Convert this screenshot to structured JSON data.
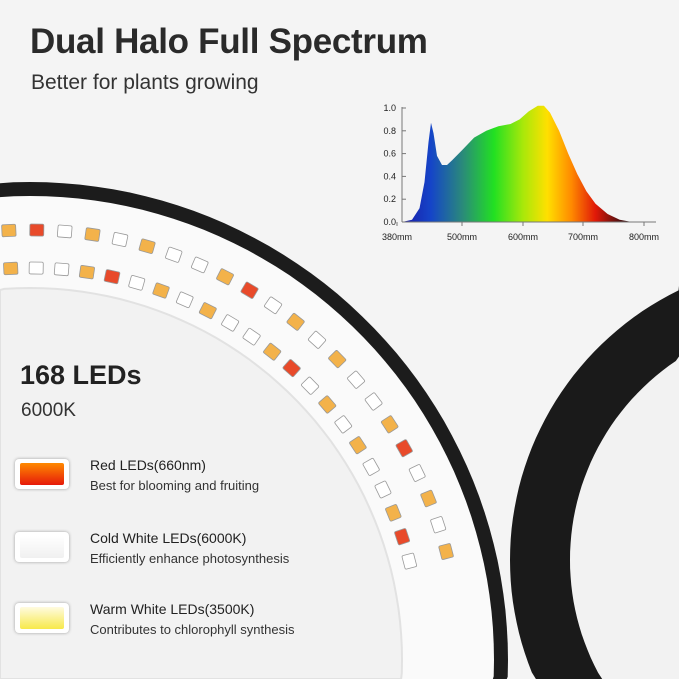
{
  "header": {
    "title": "Dual Halo Full Spectrum",
    "subtitle": "Better for plants growing"
  },
  "specs": {
    "led_count": "168 LEDs",
    "color_temperature": "6000K"
  },
  "legend": [
    {
      "title": "Red LEDs(660nm)",
      "description": "Best for blooming and fruiting",
      "color_top": "#ff8a00",
      "color_bottom": "#e61a0a"
    },
    {
      "title": "Cold White LEDs(6000K)",
      "description": "Efficiently enhance photosynthesis",
      "color_top": "#ffffff",
      "color_bottom": "#f2f2f2"
    },
    {
      "title": "Warm White LEDs(3500K)",
      "description": "Contributes to chlorophyll synthesis",
      "color_top": "#fffbe0",
      "color_bottom": "#f7e94a"
    }
  ],
  "chart_data": {
    "type": "area",
    "x_tick_labels": [
      "380mm",
      "500mm",
      "600mm",
      "700mm",
      "800mm"
    ],
    "x_ticks": [
      380,
      500,
      600,
      700,
      800
    ],
    "y_tick_labels": [
      "0.0",
      "0.2",
      "0.4",
      "0.6",
      "0.8",
      "1.0"
    ],
    "y_ticks": [
      0,
      0.2,
      0.4,
      0.6,
      0.8,
      1.0
    ],
    "xlim": [
      380,
      800
    ],
    "ylim": [
      0,
      1.0
    ],
    "grid": false,
    "fill": "rainbow spectrum gradient",
    "points": [
      [
        380,
        0
      ],
      [
        400,
        0.02
      ],
      [
        415,
        0.12
      ],
      [
        425,
        0.35
      ],
      [
        433,
        0.7
      ],
      [
        438,
        0.87
      ],
      [
        443,
        0.78
      ],
      [
        450,
        0.58
      ],
      [
        460,
        0.5
      ],
      [
        470,
        0.5
      ],
      [
        480,
        0.54
      ],
      [
        500,
        0.63
      ],
      [
        520,
        0.74
      ],
      [
        540,
        0.8
      ],
      [
        560,
        0.84
      ],
      [
        580,
        0.86
      ],
      [
        595,
        0.9
      ],
      [
        610,
        0.97
      ],
      [
        625,
        1.02
      ],
      [
        635,
        1.02
      ],
      [
        645,
        0.96
      ],
      [
        660,
        0.8
      ],
      [
        675,
        0.6
      ],
      [
        690,
        0.42
      ],
      [
        705,
        0.27
      ],
      [
        720,
        0.16
      ],
      [
        740,
        0.07
      ],
      [
        760,
        0.02
      ],
      [
        780,
        0
      ]
    ]
  },
  "colors": {
    "ring": "#1e1e1e",
    "background": "#f4f4f4"
  }
}
